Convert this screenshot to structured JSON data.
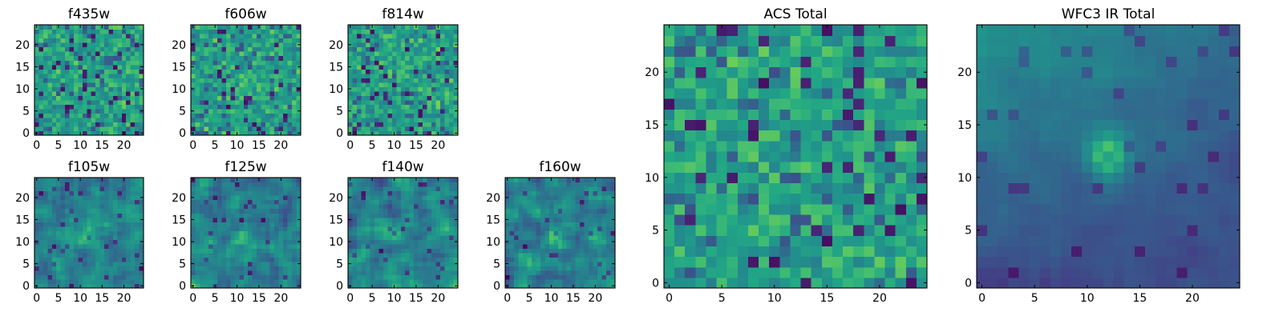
{
  "figure": {
    "colormap": "viridis",
    "background": "#ffffff"
  },
  "chart_data": [
    {
      "type": "heatmap",
      "title": "f435w",
      "xlim": [
        0,
        25
      ],
      "ylim": [
        0,
        25
      ],
      "xticks": [
        "0",
        "5",
        "10",
        "15",
        "20"
      ],
      "yticks": [
        "0",
        "5",
        "10",
        "15",
        "20"
      ],
      "grid": false,
      "pattern": "noise"
    },
    {
      "type": "heatmap",
      "title": "f606w",
      "xlim": [
        0,
        25
      ],
      "ylim": [
        0,
        25
      ],
      "xticks": [
        "0",
        "5",
        "10",
        "15",
        "20"
      ],
      "yticks": [
        "0",
        "5",
        "10",
        "15",
        "20"
      ],
      "grid": false,
      "pattern": "noise"
    },
    {
      "type": "heatmap",
      "title": "f814w",
      "xlim": [
        0,
        25
      ],
      "ylim": [
        0,
        25
      ],
      "xticks": [
        "0",
        "5",
        "10",
        "15",
        "20"
      ],
      "yticks": [
        "0",
        "5",
        "10",
        "15",
        "20"
      ],
      "grid": false,
      "pattern": "noise"
    },
    {
      "type": "heatmap",
      "title": "f105w",
      "xlim": [
        0,
        25
      ],
      "ylim": [
        0,
        25
      ],
      "xticks": [
        "0",
        "5",
        "10",
        "15",
        "20"
      ],
      "yticks": [
        "0",
        "5",
        "10",
        "15",
        "20"
      ],
      "grid": false,
      "pattern": "smooth-source"
    },
    {
      "type": "heatmap",
      "title": "f125w",
      "xlim": [
        0,
        25
      ],
      "ylim": [
        0,
        25
      ],
      "xticks": [
        "0",
        "5",
        "10",
        "15",
        "20"
      ],
      "yticks": [
        "0",
        "5",
        "10",
        "15",
        "20"
      ],
      "grid": false,
      "pattern": "smooth-source"
    },
    {
      "type": "heatmap",
      "title": "f140w",
      "xlim": [
        0,
        25
      ],
      "ylim": [
        0,
        25
      ],
      "xticks": [
        "0",
        "5",
        "10",
        "15",
        "20"
      ],
      "yticks": [
        "0",
        "5",
        "10",
        "15",
        "20"
      ],
      "grid": false,
      "pattern": "smooth-source"
    },
    {
      "type": "heatmap",
      "title": "f160w",
      "xlim": [
        0,
        25
      ],
      "ylim": [
        0,
        25
      ],
      "xticks": [
        "0",
        "5",
        "10",
        "15",
        "20"
      ],
      "yticks": [
        "0",
        "5",
        "10",
        "15",
        "20"
      ],
      "grid": false,
      "pattern": "smooth-source"
    },
    {
      "type": "heatmap",
      "title": "ACS Total",
      "xlim": [
        0,
        25
      ],
      "ylim": [
        0,
        25
      ],
      "xticks": [
        "0",
        "5",
        "10",
        "15",
        "20"
      ],
      "yticks": [
        "0",
        "5",
        "10",
        "15",
        "20"
      ],
      "grid": false,
      "pattern": "noise"
    },
    {
      "type": "heatmap",
      "title": "WFC3 IR Total",
      "xlim": [
        0,
        25
      ],
      "ylim": [
        0,
        25
      ],
      "xticks": [
        "0",
        "5",
        "10",
        "15",
        "20"
      ],
      "yticks": [
        "0",
        "5",
        "10",
        "15",
        "20"
      ],
      "grid": false,
      "pattern": "source-gradient",
      "source_center": [
        12,
        12
      ]
    }
  ]
}
